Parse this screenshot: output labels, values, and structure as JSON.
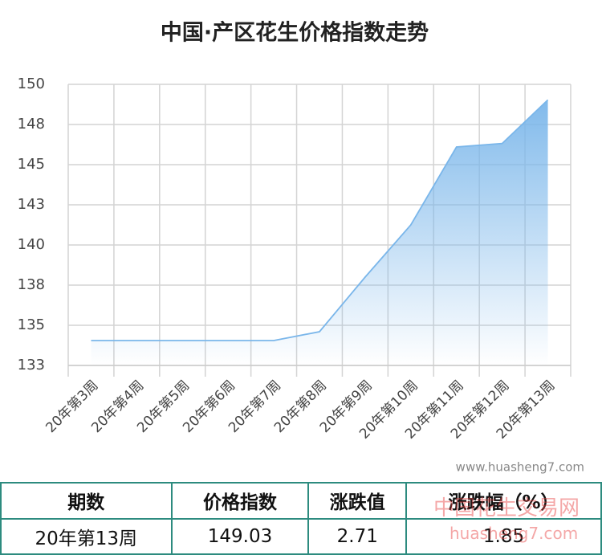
{
  "chart_data": {
    "type": "area",
    "title": "中国·产区花生价格指数走势",
    "categories": [
      "20年第3周",
      "20年第4周",
      "20年第5周",
      "20年第6周",
      "20年第7周",
      "20年第8周",
      "20年第9周",
      "20年第10周",
      "20年第11周",
      "20年第12周",
      "20年第13周"
    ],
    "values": [
      134.05,
      134.05,
      134.05,
      134.05,
      134.05,
      134.6,
      138.0,
      141.25,
      146.1,
      146.32,
      149.03
    ],
    "color": "#7ab6ea",
    "ylim": [
      132.5,
      150
    ],
    "yticks": [
      {
        "value": 132.5,
        "label": "133"
      },
      135,
      {
        "value": 137.5,
        "label": "138"
      },
      140,
      {
        "value": 142.5,
        "label": "143"
      },
      145,
      {
        "value": 147.5,
        "label": "148"
      },
      150
    ],
    "grid": true,
    "source": "www.huasheng7.com"
  },
  "watermark": {
    "name": "中国花生交易网",
    "url": "huasheng7.com"
  },
  "table": {
    "header": [
      "期数",
      "价格指数",
      "涨跌值",
      "涨跌幅（%）"
    ],
    "rows": [
      [
        "20年第13周",
        "149.03",
        "2.71",
        "1.85"
      ]
    ]
  }
}
